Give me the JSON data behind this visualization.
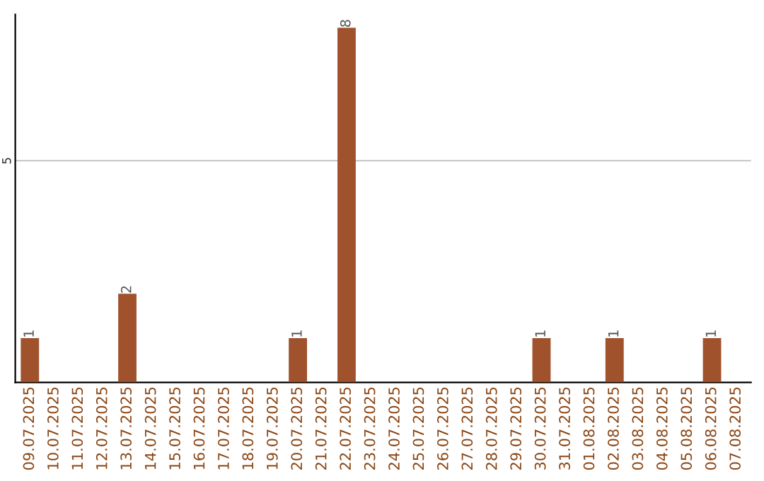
{
  "chart_data": {
    "type": "bar",
    "categories": [
      "09.07.2025",
      "10.07.2025",
      "11.07.2025",
      "12.07.2025",
      "13.07.2025",
      "14.07.2025",
      "15.07.2025",
      "16.07.2025",
      "17.07.2025",
      "18.07.2025",
      "19.07.2025",
      "20.07.2025",
      "21.07.2025",
      "22.07.2025",
      "23.07.2025",
      "24.07.2025",
      "25.07.2025",
      "26.07.2025",
      "27.07.2025",
      "28.07.2025",
      "29.07.2025",
      "30.07.2025",
      "31.07.2025",
      "01.08.2025",
      "02.08.2025",
      "03.08.2025",
      "04.08.2025",
      "05.08.2025",
      "06.08.2025",
      "07.08.2025"
    ],
    "values": [
      1,
      0,
      0,
      0,
      2,
      0,
      0,
      0,
      0,
      0,
      0,
      1,
      0,
      8,
      0,
      0,
      0,
      0,
      0,
      0,
      0,
      1,
      0,
      0,
      1,
      0,
      0,
      0,
      1,
      0
    ],
    "value_labels": [
      "1",
      null,
      null,
      null,
      "2",
      null,
      null,
      null,
      null,
      null,
      null,
      "1",
      null,
      "8",
      null,
      null,
      null,
      null,
      null,
      null,
      null,
      "1",
      null,
      null,
      "1",
      null,
      null,
      null,
      "1",
      null
    ],
    "color": "#a0522d",
    "ylim": [
      0,
      8.3
    ],
    "yticks": [
      5
    ],
    "grid": "y"
  }
}
